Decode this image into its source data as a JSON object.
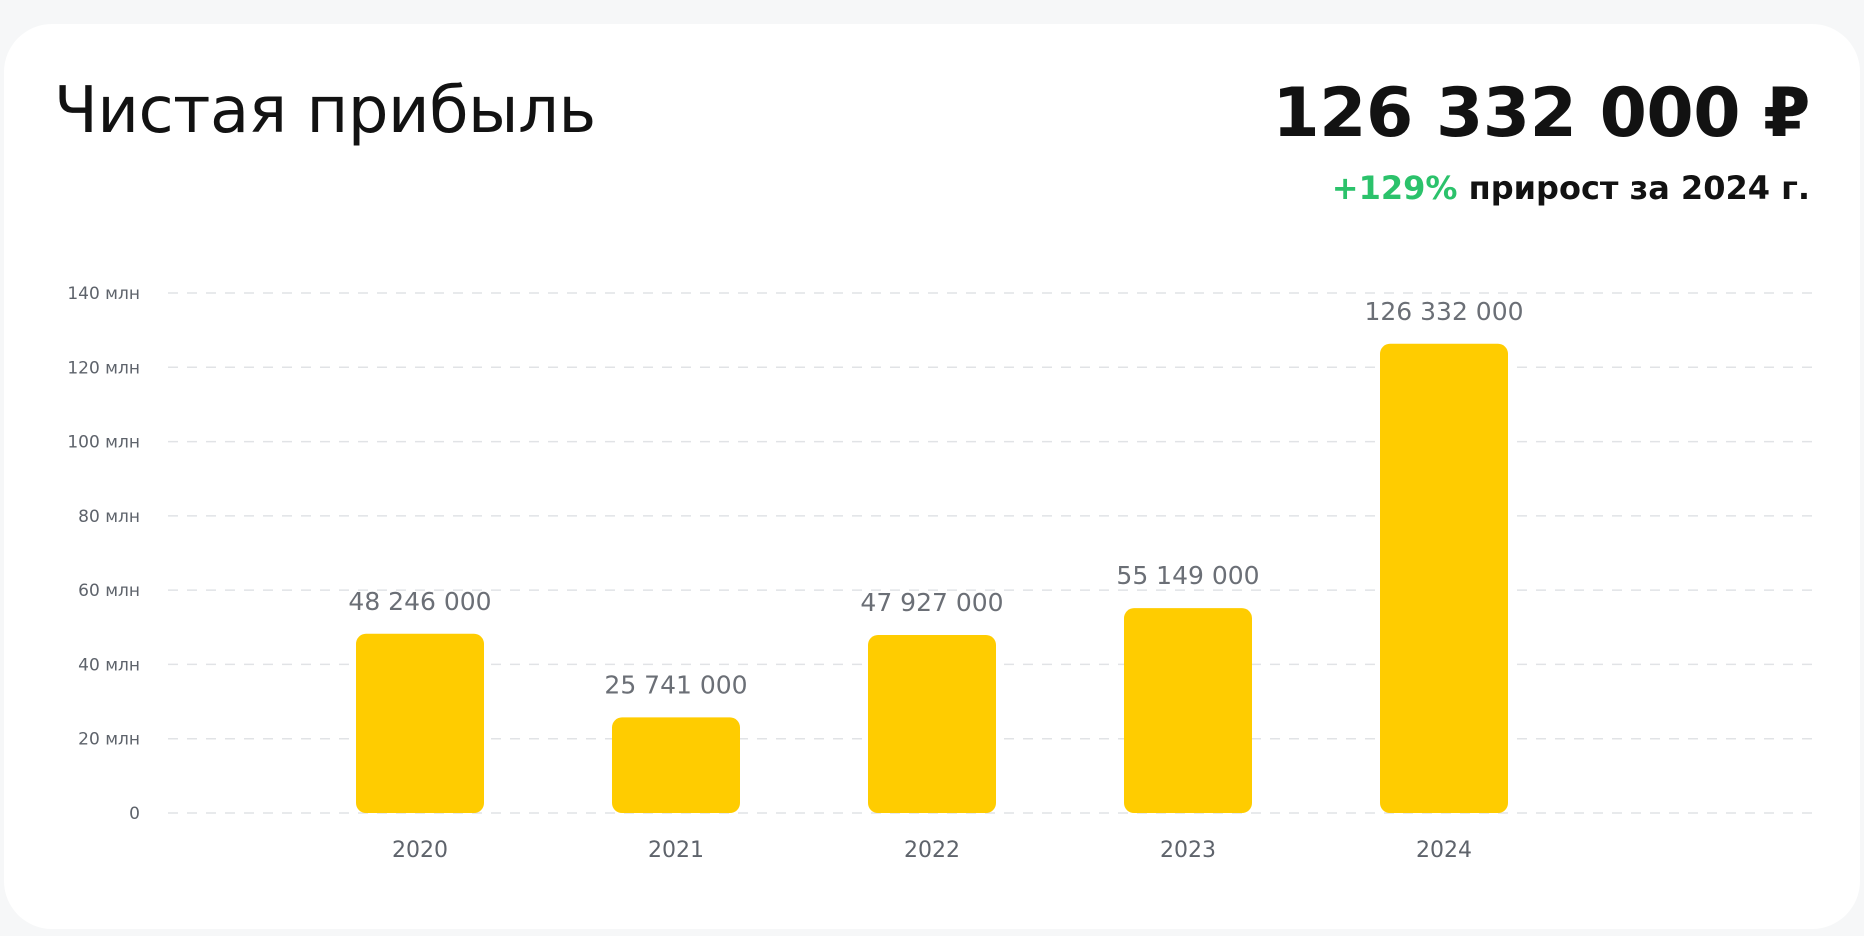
{
  "header": {
    "title": "Чистая прибыль",
    "total": "126 332 000 ₽",
    "growth_pct": "+129%",
    "growth_text": " прирост за 2024 г."
  },
  "colors": {
    "bar": "#ffcc00",
    "growth": "#2bc26b",
    "grid": "#e1e3e6"
  },
  "chart_data": {
    "type": "bar",
    "categories": [
      "2020",
      "2021",
      "2022",
      "2023",
      "2024"
    ],
    "values": [
      48246000,
      25741000,
      47927000,
      55149000,
      126332000
    ],
    "data_labels": [
      "48 246 000",
      "25 741 000",
      "47 927 000",
      "55 149 000",
      "126 332 000"
    ],
    "ylim": [
      0,
      140000000
    ],
    "y_ticks": [
      0,
      20000000,
      40000000,
      60000000,
      80000000,
      100000000,
      120000000,
      140000000
    ],
    "y_tick_labels": [
      "0",
      "20 млн",
      "40 млн",
      "60 млн",
      "80 млн",
      "100 млн",
      "120 млн",
      "140 млн"
    ],
    "grid": true,
    "grid_style": "dashed",
    "legend": "none"
  }
}
